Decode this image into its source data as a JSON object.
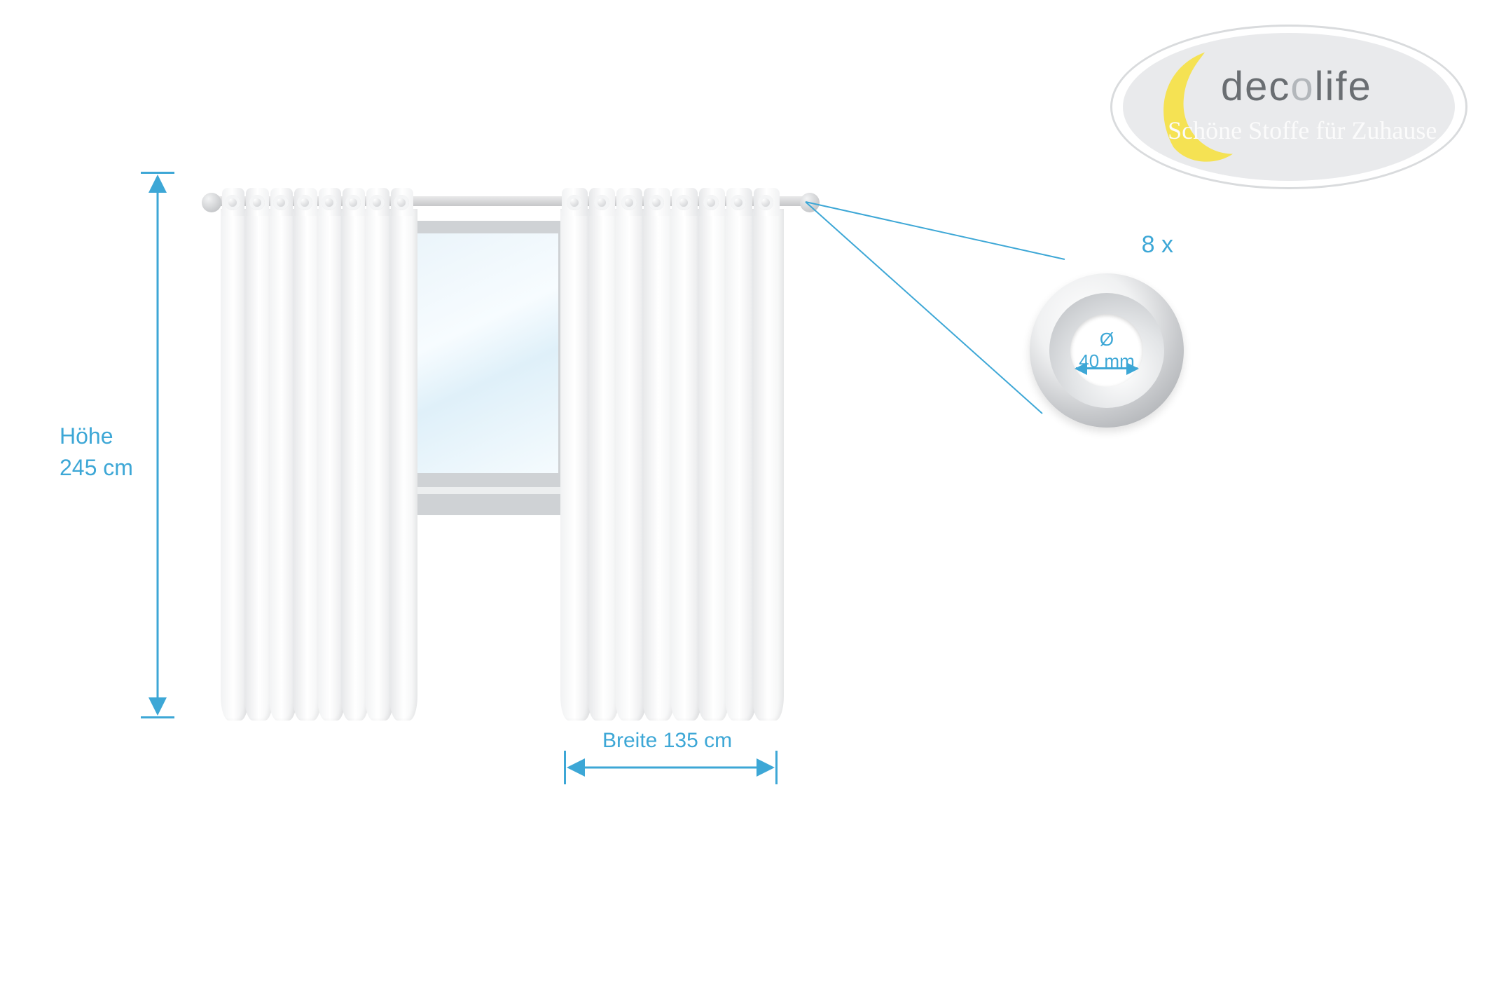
{
  "colors": {
    "accent": "#3da7d6",
    "curtain_light": "#ffffff",
    "curtain_shade": "#f1f2f3",
    "curtain_dark": "#e6e7e9",
    "window_frame": "#cfd2d5",
    "logo_bg": "#e9eaec",
    "logo_text": "#6a6e72",
    "moon": "#f5e14b"
  },
  "logo": {
    "brand_pre": "dec",
    "brand_o": "o",
    "brand_post": "life",
    "tagline": "Schöne Stoffe für Zuhause"
  },
  "dimensions": {
    "height_label": "Höhe",
    "height_value": "245 cm",
    "width_label": "Breite 135 cm"
  },
  "eyelet": {
    "count_label": "8 x",
    "diameter_symbol": "Ø",
    "diameter_value": "40 mm"
  },
  "curtain": {
    "eyelets_per_panel": 8
  }
}
